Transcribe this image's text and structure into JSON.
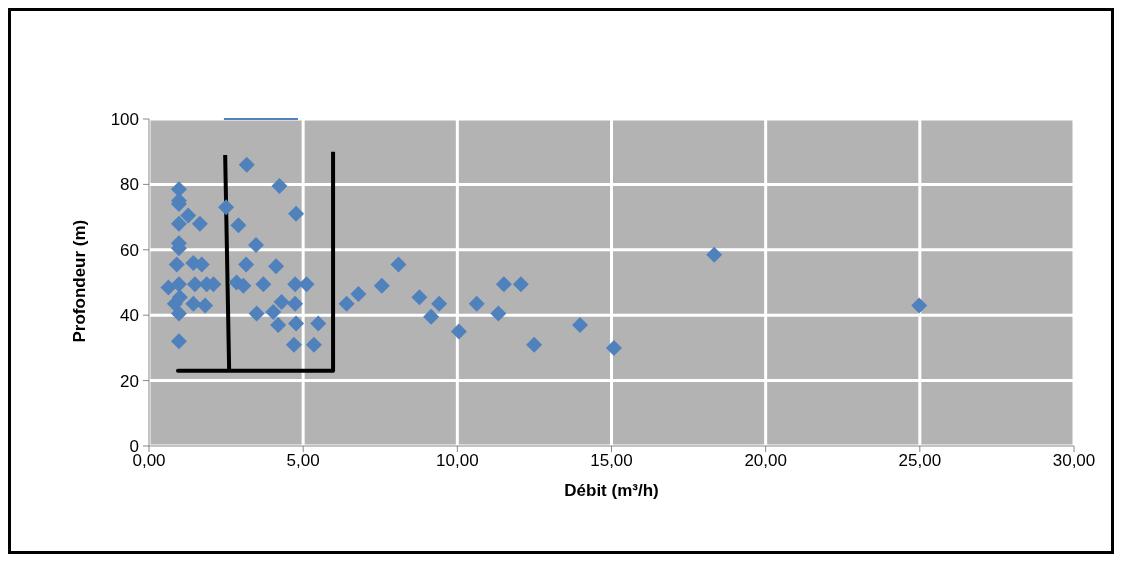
{
  "chart_data": {
    "type": "scatter",
    "xlabel": "Débit (m³/h)",
    "ylabel": "Profondeur (m)",
    "xlim": [
      0,
      30
    ],
    "xticks": [
      {
        "value": 0,
        "label": "0,00"
      },
      {
        "value": 5,
        "label": "5,00"
      },
      {
        "value": 10,
        "label": "10,00"
      },
      {
        "value": 15,
        "label": "15,00"
      },
      {
        "value": 20,
        "label": "20,00"
      },
      {
        "value": 25,
        "label": "25,00"
      },
      {
        "value": 30,
        "label": "30,00"
      }
    ],
    "ylim": [
      0,
      100
    ],
    "yticks": [
      0,
      20,
      40,
      60,
      80,
      100
    ],
    "grid": true,
    "marker": "diamond",
    "legend": false,
    "series": [
      {
        "color": "#4f81bd",
        "x": [
          3.17,
          0.97,
          4.23,
          0.97,
          0.97,
          2.5,
          1.27,
          4.77,
          0.97,
          1.65,
          2.9,
          0.97,
          0.97,
          3.47,
          0.9,
          1.44,
          1.71,
          3.15,
          4.12,
          0.63,
          0.97,
          1.49,
          1.87,
          2.09,
          2.84,
          3.06,
          3.71,
          4.74,
          5.11,
          0.84,
          1.0,
          1.44,
          1.82,
          0.97,
          4.3,
          4.74,
          3.49,
          4.03,
          4.19,
          4.77,
          5.49,
          6.41,
          6.79,
          0.97,
          4.7,
          5.35,
          7.55,
          8.09,
          8.77,
          9.41,
          9.15,
          10.63,
          10.05,
          11.33,
          11.51,
          12.06,
          12.49,
          13.98,
          15.08,
          18.33,
          24.98
        ],
        "values": [
          86,
          78.5,
          79.5,
          75,
          74,
          73,
          70.5,
          71,
          68,
          68,
          67.5,
          62,
          60.5,
          61.5,
          55.5,
          56,
          55.5,
          55.5,
          55,
          48.5,
          49.5,
          49.5,
          49.5,
          49.5,
          50,
          49,
          49.5,
          49.5,
          49.5,
          43.5,
          45.5,
          43.5,
          43,
          40.5,
          44,
          43.5,
          40.5,
          41,
          37,
          37.5,
          37.5,
          43.5,
          46.5,
          32,
          31,
          31,
          49,
          55.5,
          45.5,
          43.5,
          39.5,
          43.5,
          35,
          40.5,
          49.5,
          49.5,
          31,
          37,
          30,
          58.5,
          43
        ]
      },
      {
        "type": "line",
        "color": "#000000",
        "marker": "none",
        "x": [
          2.47,
          2.6,
          0.94,
          5.97,
          5.97
        ],
        "values": [
          89,
          23,
          23,
          23,
          90
        ]
      }
    ]
  }
}
